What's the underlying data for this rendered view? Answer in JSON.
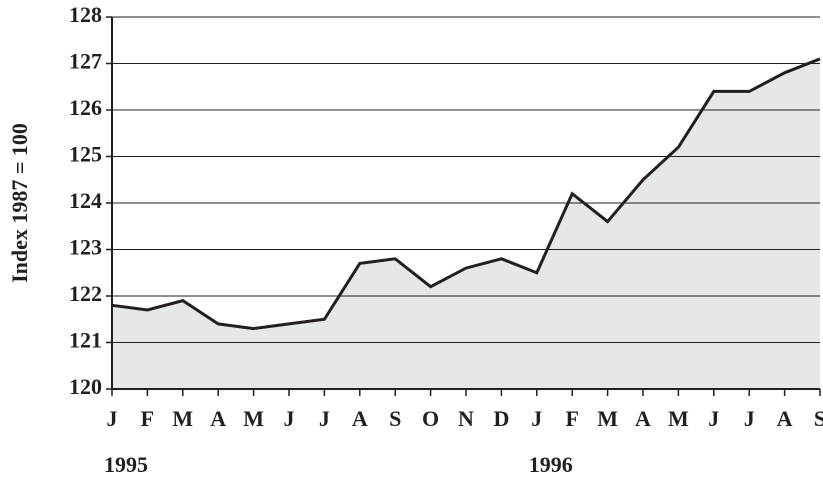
{
  "chart_data": {
    "type": "area",
    "y_label": "Index 1987 = 100",
    "groups": [
      {
        "label": "1995",
        "categories": [
          "J",
          "F",
          "M",
          "A",
          "M",
          "J",
          "J",
          "A",
          "S",
          "O",
          "N",
          "D"
        ]
      },
      {
        "label": "1996",
        "categories": [
          "J",
          "F",
          "M",
          "A",
          "M",
          "J",
          "J",
          "A",
          "S"
        ]
      }
    ],
    "values": [
      121.8,
      121.7,
      121.9,
      121.4,
      121.3,
      121.4,
      121.5,
      122.7,
      122.8,
      122.2,
      122.6,
      122.8,
      122.5,
      124.2,
      123.6,
      124.5,
      125.2,
      126.4,
      126.4,
      126.8,
      127.1
    ],
    "ylim": [
      120,
      128
    ],
    "yticks": [
      120,
      121,
      122,
      123,
      124,
      125,
      126,
      127,
      128
    ],
    "color": "#231f20",
    "fill": "#e6e7e8",
    "grid": true
  }
}
